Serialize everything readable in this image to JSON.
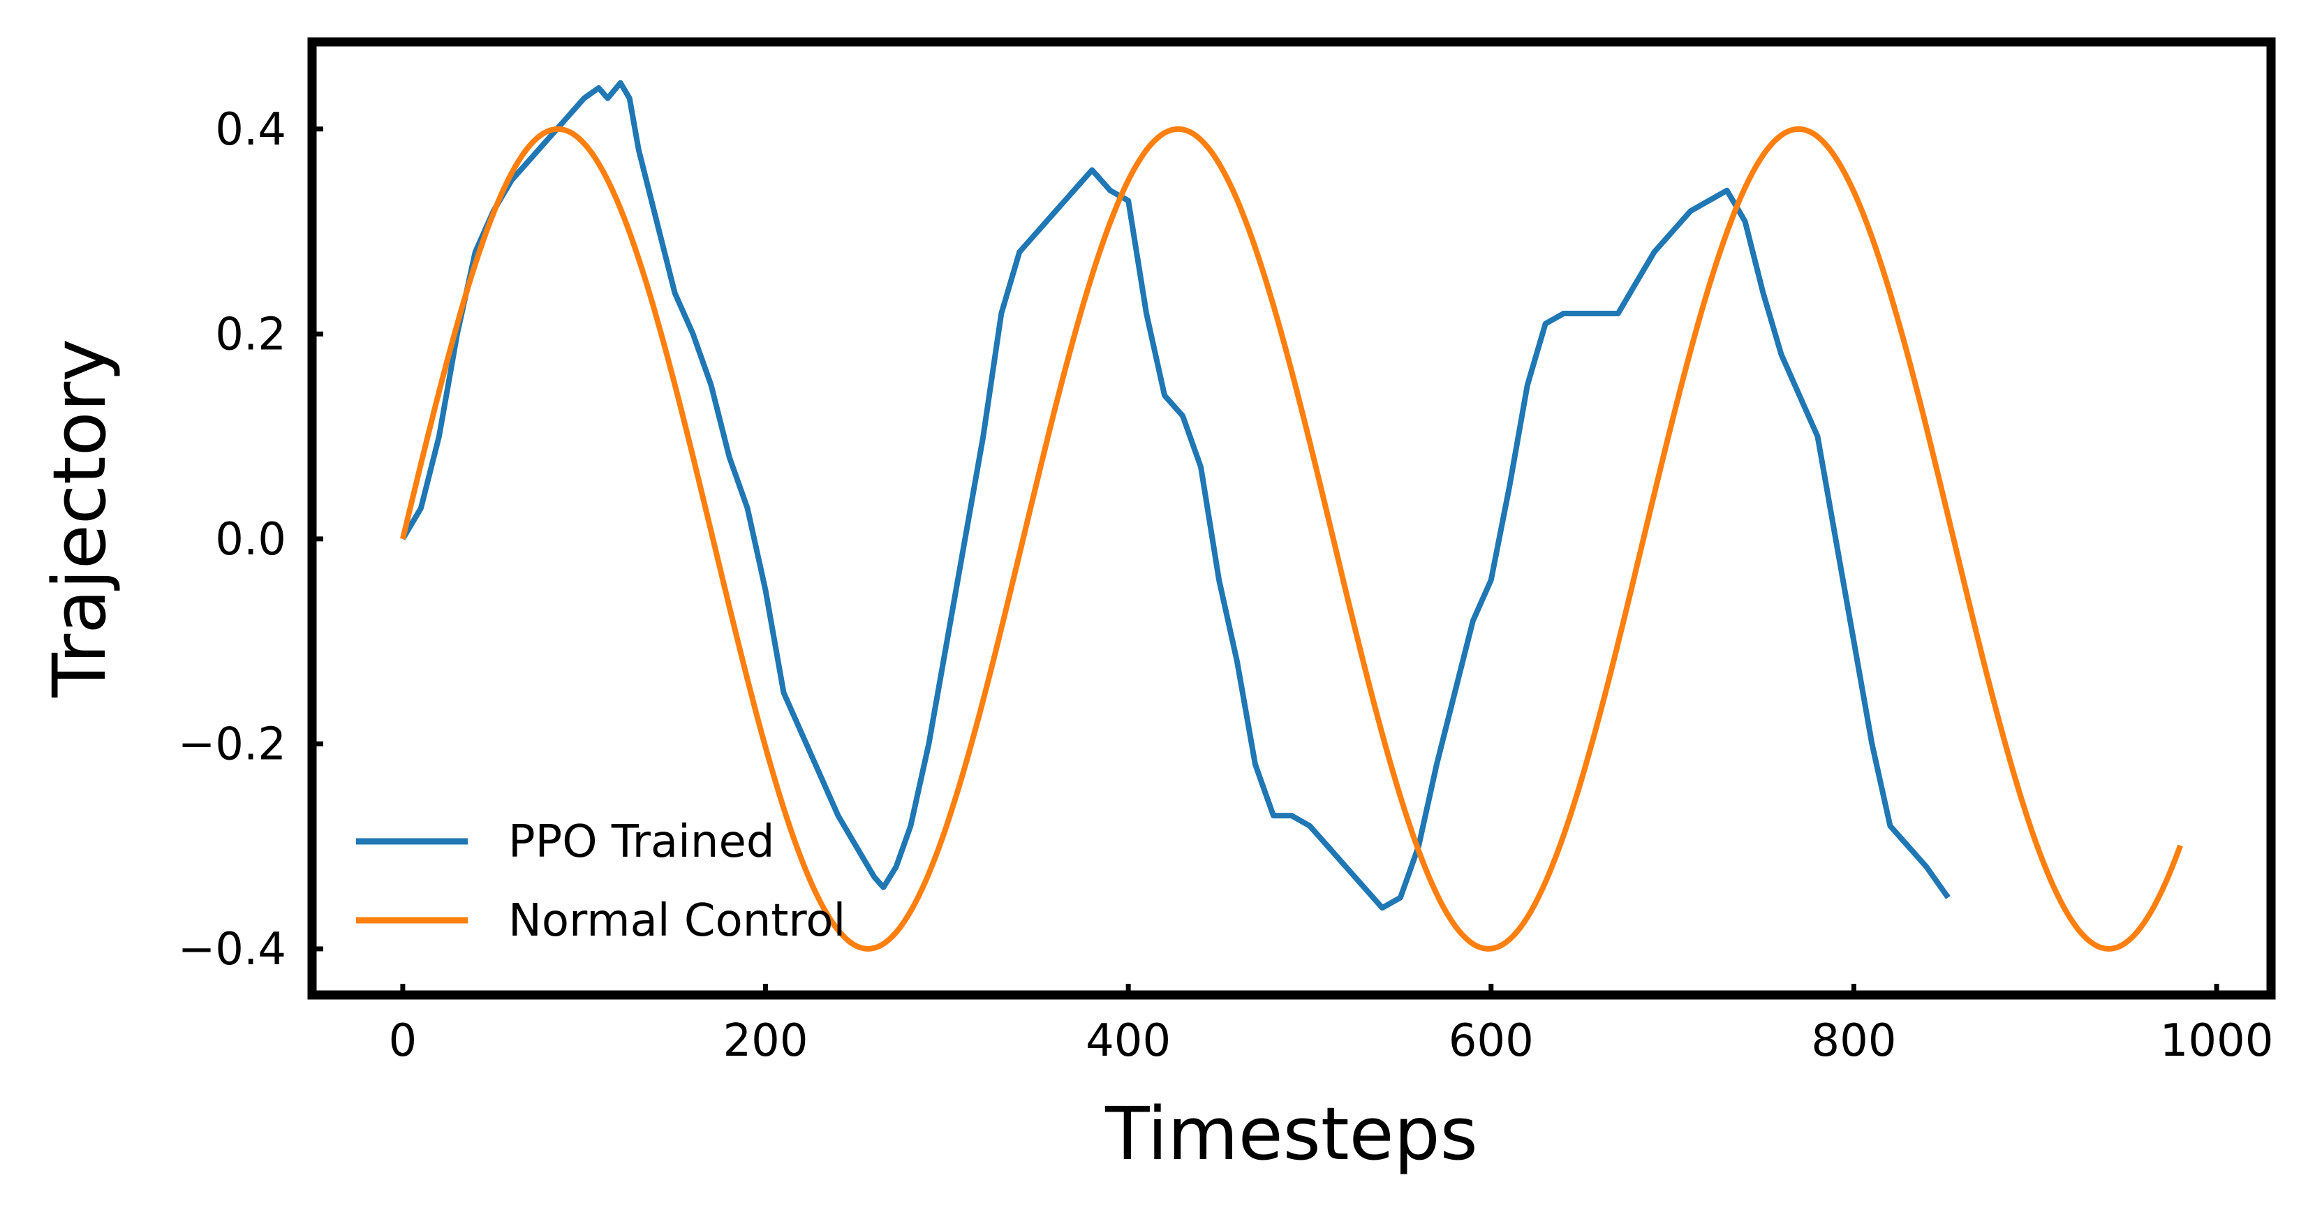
{
  "chart_data": {
    "type": "line",
    "title": "",
    "xlabel": "Timesteps",
    "ylabel": "Trajectory",
    "xlim": [
      -50,
      1030
    ],
    "ylim": [
      -0.445,
      0.485
    ],
    "xticks": [
      0,
      200,
      400,
      600,
      800,
      1000
    ],
    "xtick_labels": [
      "0",
      "200",
      "400",
      "600",
      "800",
      "1000"
    ],
    "yticks": [
      0.4,
      0.2,
      0.0,
      -0.2,
      -0.4
    ],
    "ytick_labels": [
      "0.4",
      "0.2",
      "0.0",
      "−0.2",
      "−0.4"
    ],
    "grid": false,
    "legend_position": "lower-left",
    "series": [
      {
        "name": "PPO Trained",
        "color": "#1f77b4",
        "x": [
          0,
          10,
          20,
          30,
          40,
          50,
          60,
          70,
          80,
          90,
          100,
          108,
          113,
          120,
          125,
          130,
          140,
          150,
          160,
          170,
          180,
          190,
          200,
          210,
          220,
          230,
          240,
          250,
          260,
          265,
          272,
          280,
          290,
          300,
          310,
          320,
          330,
          340,
          350,
          360,
          370,
          380,
          385,
          390,
          400,
          410,
          420,
          430,
          440,
          450,
          460,
          470,
          480,
          490,
          500,
          510,
          520,
          530,
          540,
          550,
          560,
          570,
          580,
          590,
          600,
          610,
          620,
          630,
          640,
          650,
          660,
          670,
          680,
          690,
          700,
          710,
          720,
          730,
          740,
          750,
          760,
          770,
          780,
          790,
          800,
          810,
          820,
          830,
          840,
          852
        ],
        "values": [
          0.0,
          0.03,
          0.1,
          0.2,
          0.28,
          0.32,
          0.35,
          0.37,
          0.39,
          0.41,
          0.43,
          0.44,
          0.43,
          0.445,
          0.43,
          0.38,
          0.31,
          0.24,
          0.2,
          0.15,
          0.08,
          0.03,
          -0.05,
          -0.15,
          -0.19,
          -0.23,
          -0.27,
          -0.3,
          -0.33,
          -0.34,
          -0.32,
          -0.28,
          -0.2,
          -0.1,
          0.0,
          0.1,
          0.22,
          0.28,
          0.3,
          0.32,
          0.34,
          0.36,
          0.35,
          0.34,
          0.33,
          0.22,
          0.14,
          0.12,
          0.07,
          -0.04,
          -0.12,
          -0.22,
          -0.27,
          -0.27,
          -0.28,
          -0.3,
          -0.32,
          -0.34,
          -0.36,
          -0.35,
          -0.3,
          -0.22,
          -0.15,
          -0.08,
          -0.04,
          0.05,
          0.15,
          0.21,
          0.22,
          0.22,
          0.22,
          0.22,
          0.25,
          0.28,
          0.3,
          0.32,
          0.33,
          0.34,
          0.31,
          0.24,
          0.18,
          0.14,
          0.1,
          0.0,
          -0.1,
          -0.2,
          -0.28,
          -0.3,
          -0.32,
          -0.35
        ]
      },
      {
        "name": "Normal Control",
        "color": "#ff7f0e",
        "function": "0.4*sin(2*pi*t/342)",
        "x_start": 0,
        "x_end": 980,
        "amplitude": 0.4,
        "period": 342
      }
    ]
  }
}
